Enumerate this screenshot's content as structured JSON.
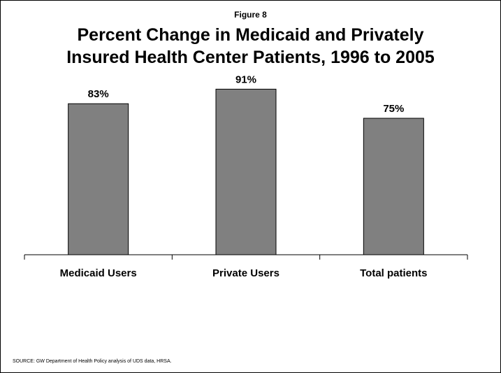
{
  "figure_label": "Figure 8",
  "title_line1": "Percent Change in Medicaid and Privately",
  "title_line2": "Insured Health Center Patients, 1996 to 2005",
  "source": "SOURCE: GW Department of Health Policy analysis of UDS data, HRSA.",
  "colors": {
    "bar_fill": "#808080",
    "bar_stroke": "#000000",
    "axis": "#000000"
  },
  "chart_data": {
    "type": "bar",
    "title": "Percent Change in Medicaid and Privately Insured Health Center Patients, 1996 to 2005",
    "categories": [
      "Medicaid Users",
      "Private Users",
      "Total patients"
    ],
    "values": [
      83,
      91,
      75
    ],
    "value_labels": [
      "83%",
      "91%",
      "75%"
    ],
    "xlabel": "",
    "ylabel": "",
    "ylim": [
      0,
      100
    ],
    "grid": false,
    "legend": "none"
  }
}
